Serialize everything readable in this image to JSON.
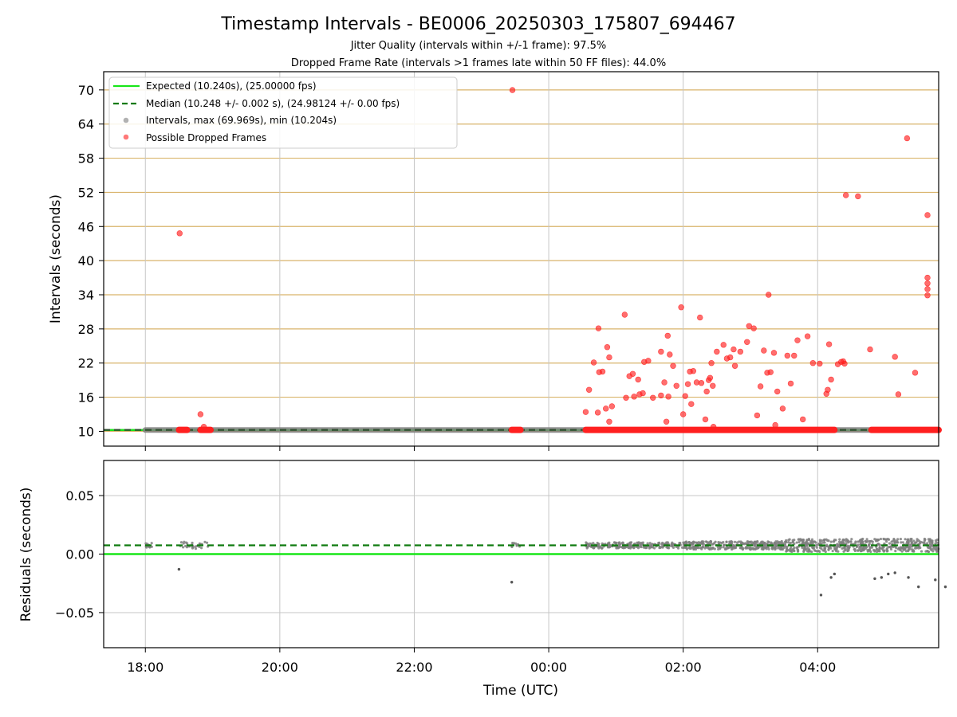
{
  "chart_data": [
    {
      "type": "scatter",
      "panel": "intervals",
      "title": "Timestamp Intervals - BE0006_20250303_175807_694467",
      "subtitles": [
        "Jitter Quality (intervals within +/-1 frame): 97.5%",
        "Dropped Frame Rate (intervals >1 frames late within 50 FF files): 44.0%"
      ],
      "ylabel": "Intervals (seconds)",
      "xlabel": "",
      "ylim": [
        7.4,
        73.2
      ],
      "yticks": [
        "10",
        "16",
        "22",
        "28",
        "34",
        "40",
        "46",
        "52",
        "58",
        "64",
        "70"
      ],
      "grid": "horizontal gold lines at y ticks, vertical gray lines at x ticks",
      "legend_position": "upper left",
      "legend": [
        "Expected (10.240s), (25.00000 fps)",
        "Median (10.248 +/- 0.002 s), (24.98124 +/- 0.00 fps)",
        "Intervals, max (69.969s), min (10.204s)",
        "Possible Dropped Frames"
      ],
      "expected_interval": 10.24,
      "median_interval": 10.248,
      "normal_runs_hours": [
        [
          18.0,
          24.56
        ],
        [
          24.9,
          29.8
        ]
      ],
      "dropped_runs_hours": [
        {
          "from": 18.5,
          "to": 18.62,
          "y": 10.25
        },
        {
          "from": 18.82,
          "to": 18.97,
          "y": 10.25
        },
        {
          "from": 23.45,
          "to": 23.58,
          "y": 10.25
        },
        {
          "from": 24.55,
          "to": 28.25,
          "y": 10.25
        },
        {
          "from": 28.8,
          "to": 29.8,
          "y": 10.25
        }
      ],
      "dropped_points": [
        [
          18.51,
          44.8
        ],
        [
          18.82,
          13.0
        ],
        [
          18.87,
          10.8
        ],
        [
          23.46,
          69.97
        ],
        [
          24.55,
          13.4
        ],
        [
          24.6,
          17.3
        ],
        [
          24.67,
          22.1
        ],
        [
          24.73,
          13.3
        ],
        [
          24.74,
          28.1
        ],
        [
          24.75,
          20.4
        ],
        [
          24.8,
          20.5
        ],
        [
          24.85,
          14.0
        ],
        [
          24.87,
          24.8
        ],
        [
          24.9,
          23.0
        ],
        [
          24.9,
          11.7
        ],
        [
          24.94,
          14.4
        ],
        [
          25.13,
          30.5
        ],
        [
          25.15,
          15.9
        ],
        [
          25.2,
          19.7
        ],
        [
          25.25,
          20.1
        ],
        [
          25.27,
          16.1
        ],
        [
          25.33,
          19.1
        ],
        [
          25.35,
          16.5
        ],
        [
          25.4,
          16.7
        ],
        [
          25.42,
          22.2
        ],
        [
          25.48,
          22.4
        ],
        [
          25.55,
          15.9
        ],
        [
          25.67,
          24.0
        ],
        [
          25.67,
          16.3
        ],
        [
          25.72,
          18.6
        ],
        [
          25.75,
          11.7
        ],
        [
          25.77,
          26.8
        ],
        [
          25.78,
          16.1
        ],
        [
          25.8,
          23.5
        ],
        [
          25.85,
          21.5
        ],
        [
          25.9,
          18.0
        ],
        [
          25.97,
          31.8
        ],
        [
          26.0,
          13.0
        ],
        [
          26.03,
          16.2
        ],
        [
          26.07,
          18.3
        ],
        [
          26.1,
          20.5
        ],
        [
          26.12,
          14.8
        ],
        [
          26.15,
          20.6
        ],
        [
          26.2,
          18.6
        ],
        [
          26.25,
          30.0
        ],
        [
          26.27,
          18.5
        ],
        [
          26.33,
          12.1
        ],
        [
          26.35,
          17.0
        ],
        [
          26.38,
          19.0
        ],
        [
          26.4,
          19.4
        ],
        [
          26.42,
          22.0
        ],
        [
          26.44,
          18.0
        ],
        [
          26.45,
          10.8
        ],
        [
          26.5,
          24.0
        ],
        [
          26.6,
          25.2
        ],
        [
          26.65,
          22.8
        ],
        [
          26.7,
          23.0
        ],
        [
          26.75,
          24.4
        ],
        [
          26.77,
          21.5
        ],
        [
          26.85,
          24.0
        ],
        [
          26.95,
          25.7
        ],
        [
          26.98,
          28.5
        ],
        [
          27.05,
          28.1
        ],
        [
          27.1,
          12.8
        ],
        [
          27.15,
          17.9
        ],
        [
          27.2,
          24.2
        ],
        [
          27.25,
          20.3
        ],
        [
          27.27,
          34.0
        ],
        [
          27.3,
          20.4
        ],
        [
          27.35,
          23.8
        ],
        [
          27.37,
          11.1
        ],
        [
          27.4,
          17.0
        ],
        [
          27.48,
          14.0
        ],
        [
          27.55,
          23.3
        ],
        [
          27.6,
          18.4
        ],
        [
          27.65,
          23.3
        ],
        [
          27.7,
          26.0
        ],
        [
          27.78,
          12.1
        ],
        [
          27.85,
          26.7
        ],
        [
          27.93,
          22.0
        ],
        [
          28.03,
          21.9
        ],
        [
          28.13,
          16.6
        ],
        [
          28.15,
          17.3
        ],
        [
          28.17,
          25.3
        ],
        [
          28.2,
          19.1
        ],
        [
          28.3,
          21.8
        ],
        [
          28.35,
          22.2
        ],
        [
          28.38,
          22.3
        ],
        [
          28.4,
          21.9
        ],
        [
          28.42,
          51.5
        ],
        [
          28.6,
          51.3
        ],
        [
          28.78,
          24.4
        ],
        [
          29.15,
          23.1
        ],
        [
          29.2,
          16.5
        ],
        [
          29.33,
          61.5
        ],
        [
          29.45,
          20.3
        ],
        [
          29.65,
          35.0
        ],
        [
          29.75,
          36.0
        ],
        [
          29.85,
          33.9
        ],
        [
          29.95,
          37.0
        ],
        [
          30.05,
          48.0
        ]
      ]
    },
    {
      "type": "scatter",
      "panel": "residuals",
      "ylabel": "Residuals (seconds)",
      "xlabel": "Time (UTC)",
      "ylim": [
        -0.08,
        0.08
      ],
      "yticks": [
        "−0.05",
        "0.00",
        "0.05"
      ],
      "xticks": [
        "18:00",
        "20:00",
        "22:00",
        "00:00",
        "02:00",
        "04:00"
      ],
      "xlim_hours": [
        17.38,
        29.8
      ],
      "grid": "gray lines at x and y ticks",
      "expected_line": 0.0,
      "median_line": 0.0075,
      "outlier_points": [
        [
          18.5,
          -0.013
        ],
        [
          23.45,
          -0.024
        ],
        [
          28.05,
          -0.035
        ],
        [
          28.2,
          -0.02
        ],
        [
          28.25,
          -0.017
        ],
        [
          28.85,
          -0.021
        ],
        [
          28.95,
          -0.02
        ],
        [
          29.05,
          -0.017
        ],
        [
          29.15,
          -0.016
        ],
        [
          29.35,
          -0.02
        ],
        [
          29.5,
          -0.028
        ],
        [
          29.75,
          -0.022
        ],
        [
          29.9,
          -0.028
        ]
      ]
    }
  ],
  "colors": {
    "expected": "#19e619",
    "median": "#0f7a0f",
    "intervals": "#7f7f7f",
    "dropped": "#ff2020",
    "grid_gold": "#d9b46b",
    "grid_gray": "#c6c6c6",
    "axes": "#000000"
  }
}
